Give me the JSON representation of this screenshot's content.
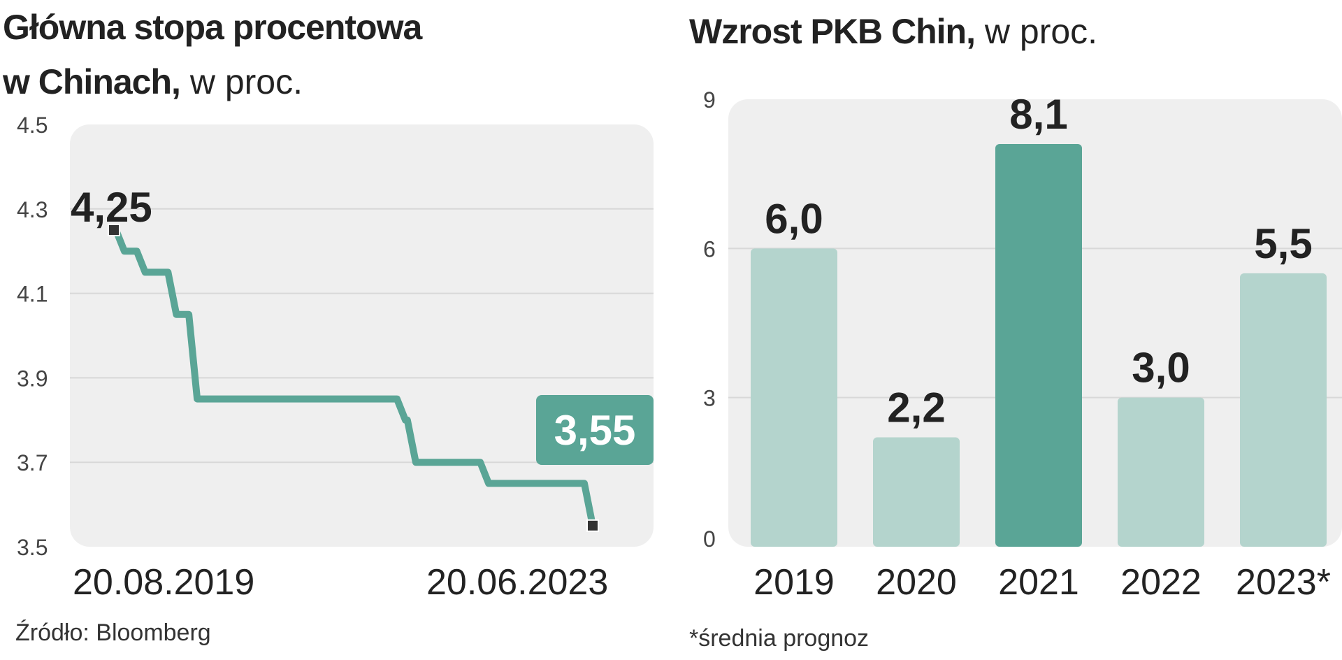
{
  "left": {
    "title_bold_1": "Główna stopa procentowa",
    "title_bold_2": "w Chinach,",
    "title_light": "w proc.",
    "source": "Źródło: Bloomberg"
  },
  "right": {
    "title_bold": "Wzrost PKB Chin,",
    "title_light": "w proc.",
    "footnote": "*średnia prognoz"
  },
  "colors": {
    "line": "#5aa596",
    "bar_light": "#b4d4cd",
    "bar_dark": "#5aa596",
    "panel_bg": "#efefef",
    "grid": "#d8d8d8",
    "marker": "#333333"
  },
  "chart_data": [
    {
      "type": "line",
      "step": true,
      "ylim": [
        3.5,
        4.5
      ],
      "yticks": [
        "3.5",
        "3.7",
        "3.9",
        "4.1",
        "4.3",
        "4.5"
      ],
      "xticks": [
        "20.08.2019",
        "20.06.2023"
      ],
      "x": [
        "20.08.2019",
        "09.2019",
        "10.2019",
        "11.2019",
        "01.2020",
        "02.2020",
        "04.2020",
        "08.2021",
        "12.2021",
        "01.2022",
        "05.2022",
        "08.2022",
        "06.2023"
      ],
      "series": [
        {
          "values": [
            4.25,
            4.2,
            4.2,
            4.15,
            4.15,
            4.05,
            3.85,
            3.85,
            3.8,
            3.7,
            3.7,
            3.65,
            3.55
          ]
        }
      ],
      "annotations": [
        {
          "label": "4,25",
          "value": 4.25,
          "at": "start"
        },
        {
          "label": "3,55",
          "value": 3.55,
          "at": "end",
          "boxed": true
        }
      ]
    },
    {
      "type": "bar",
      "categories": [
        "2019",
        "2020",
        "2021",
        "2022",
        "2023*"
      ],
      "values": [
        6.0,
        2.2,
        8.1,
        3.0,
        5.5
      ],
      "labels": [
        "6,0",
        "2,2",
        "8,1",
        "3,0",
        "5,5"
      ],
      "highlight": "2021",
      "ylim": [
        0,
        9
      ],
      "yticks": [
        "0",
        "3",
        "6",
        "9"
      ]
    }
  ]
}
